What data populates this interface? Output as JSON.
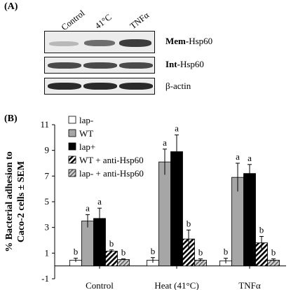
{
  "panelA": {
    "label": "(A)",
    "lanes": [
      "Control",
      "41°C",
      "TNFα"
    ],
    "rows": [
      {
        "label_bold": "Mem-",
        "label_rest": "Hsp60"
      },
      {
        "label_bold": "Int-",
        "label_rest": "Hsp60"
      },
      {
        "label_bold": "",
        "label_rest": "β-actin"
      }
    ]
  },
  "panelB": {
    "label": "(B)"
  },
  "chart_data": {
    "type": "bar",
    "ylabel_line1": "% Bacterial adhesion to",
    "ylabel_line2": "Caco-2 cells ± SEM",
    "ylim": [
      -1,
      11
    ],
    "yticks": [
      "-1",
      "1",
      "3",
      "5",
      "7",
      "9",
      "11"
    ],
    "categories": [
      "Control",
      "Heat (41°C)",
      "TNFα"
    ],
    "legend_position": "top-left",
    "series": [
      {
        "name": "lap-",
        "fill": "#ffffff",
        "pattern": "none",
        "values": [
          0.45,
          0.45,
          0.4
        ],
        "errors": [
          0.15,
          0.2,
          0.2
        ],
        "sig": [
          "b",
          "b",
          "b"
        ]
      },
      {
        "name": "WT",
        "fill": "#a6a6a6",
        "pattern": "none",
        "values": [
          3.5,
          8.1,
          6.9
        ],
        "errors": [
          0.5,
          1.0,
          1.1
        ],
        "sig": [
          "a",
          "a",
          "a"
        ]
      },
      {
        "name": "lap+",
        "fill": "#000000",
        "pattern": "none",
        "values": [
          3.7,
          8.9,
          7.2
        ],
        "errors": [
          0.8,
          1.3,
          0.7
        ],
        "sig": [
          "a",
          "a",
          "a"
        ]
      },
      {
        "name": "WT + anti-Hsp60",
        "fill": "#ffffff",
        "pattern": "diagonal",
        "values": [
          1.15,
          2.1,
          1.8
        ],
        "errors": [
          0.1,
          0.7,
          0.5
        ],
        "sig": [
          "b",
          "b",
          "b"
        ]
      },
      {
        "name": "lap- + anti-Hsp60",
        "fill": "#bdbdbd",
        "pattern": "diagonal-light",
        "values": [
          0.5,
          0.45,
          0.45
        ],
        "errors": [
          0.05,
          0.1,
          0.1
        ],
        "sig": [
          "b",
          "b",
          "b"
        ]
      }
    ]
  }
}
